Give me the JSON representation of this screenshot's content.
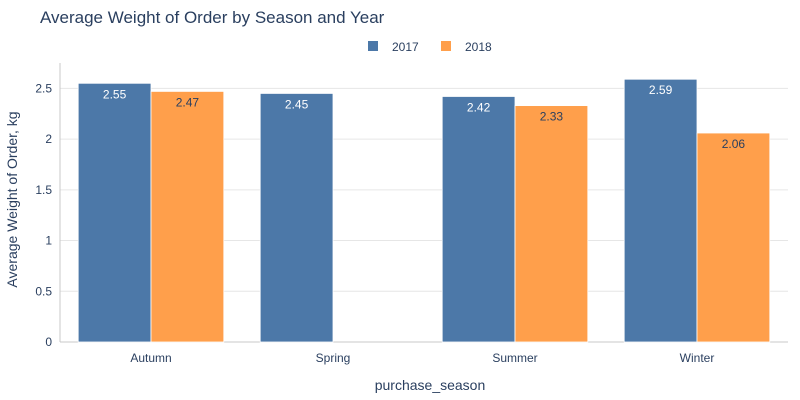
{
  "chart_data": {
    "type": "bar",
    "title": "Average Weight of Order by Season and Year",
    "xlabel": "purchase_season",
    "ylabel": "Average Weight of Order, kg",
    "categories": [
      "Autumn",
      "Spring",
      "Summer",
      "Winter"
    ],
    "series": [
      {
        "name": "2017",
        "color": "#4c78a8",
        "values": [
          2.55,
          2.45,
          2.42,
          2.59
        ],
        "labels": [
          "2.55",
          "2.45",
          "2.42",
          "2.59"
        ]
      },
      {
        "name": "2018",
        "color": "#ff9f4b",
        "values": [
          2.47,
          null,
          2.33,
          2.06
        ],
        "labels": [
          "2.47",
          null,
          "2.33",
          "2.06"
        ]
      }
    ],
    "ylim": [
      0,
      2.75
    ],
    "yticks": [
      0,
      0.5,
      1,
      1.5,
      2,
      2.5
    ],
    "ytick_labels": [
      "0",
      "0.5",
      "1",
      "1.5",
      "2",
      "2.5"
    ],
    "grid": true,
    "legend_position": "top-center"
  }
}
